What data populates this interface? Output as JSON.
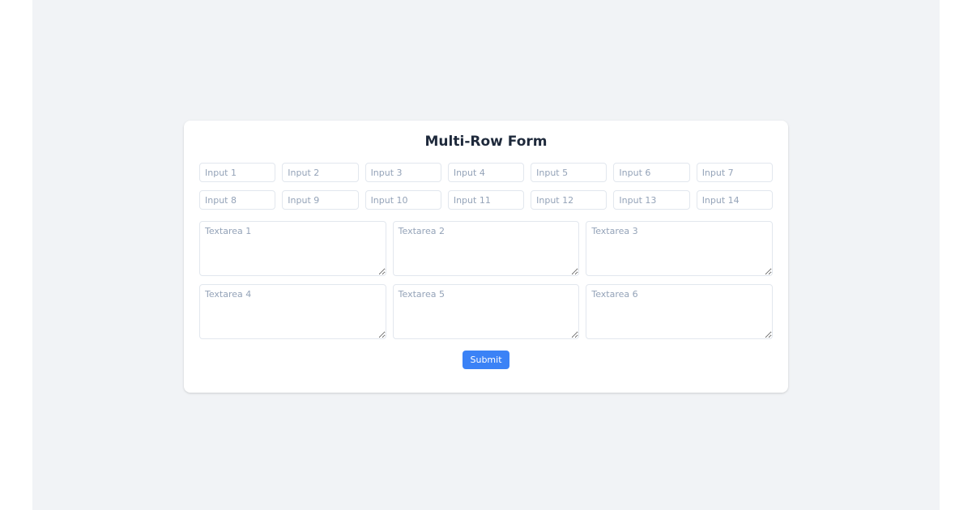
{
  "page": {
    "background_color": "#f1f3f6",
    "card_color": "#ffffff"
  },
  "form": {
    "title": "Multi-Row Form",
    "accent_color": "#3b82f6",
    "input_placeholders": [
      "Input 1",
      "Input 2",
      "Input 3",
      "Input 4",
      "Input 5",
      "Input 6",
      "Input 7",
      "Input 8",
      "Input 9",
      "Input 10",
      "Input 11",
      "Input 12",
      "Input 13",
      "Input 14"
    ],
    "textarea_placeholders": [
      "Textarea 1",
      "Textarea 2",
      "Textarea 3",
      "Textarea 4",
      "Textarea 5",
      "Textarea 6"
    ],
    "submit_label": "Submit"
  }
}
